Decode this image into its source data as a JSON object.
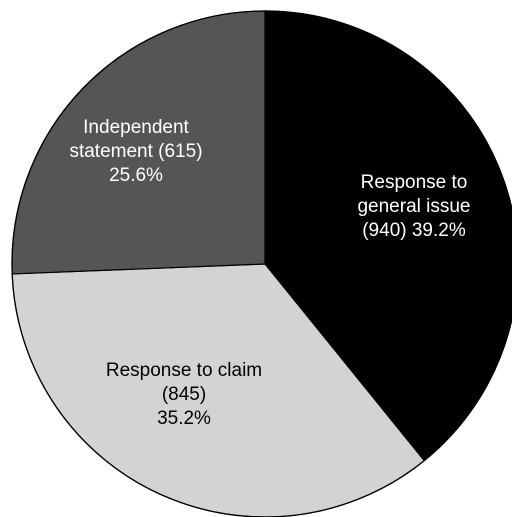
{
  "chart_data": {
    "type": "pie",
    "title": "",
    "start_angle_deg": 0,
    "direction": "clockwise",
    "slices": [
      {
        "category": "Response to general issue",
        "count": 940,
        "percent": 39.2,
        "color": "#000000",
        "text_color": "#ffffff",
        "label_lines": [
          "Response to",
          "general issue",
          "(940) 39.2%"
        ]
      },
      {
        "category": "Response to claim",
        "count": 845,
        "percent": 35.2,
        "color": "#d3d3d3",
        "text_color": "#000000",
        "label_lines": [
          "Response to claim",
          "(845)",
          "35.2%"
        ]
      },
      {
        "category": "Independent statement",
        "count": 615,
        "percent": 25.6,
        "color": "#555555",
        "text_color": "#ffffff",
        "label_lines": [
          "Independent",
          "statement (615)",
          "25.6%"
        ]
      }
    ],
    "outline_color": "#000000"
  }
}
